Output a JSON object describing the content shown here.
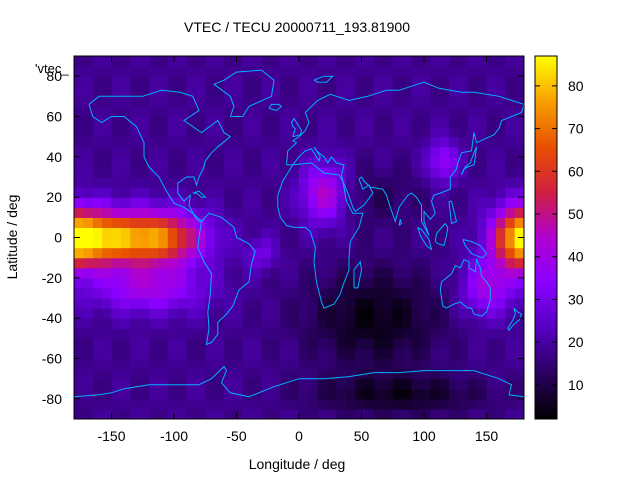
{
  "chart_data": {
    "type": "heatmap",
    "title": "VTEC / TECU 20000711_193.81900",
    "xlabel": "Longitude / deg",
    "ylabel": "Latitude / deg",
    "key_label": "'vtec_",
    "xlim": [
      -180,
      180
    ],
    "ylim": [
      -90,
      90
    ],
    "x_ticks": [
      "-150",
      "-100",
      "-50",
      "0",
      "50",
      "100",
      "150"
    ],
    "x_tick_values": [
      -150,
      -100,
      -50,
      0,
      50,
      100,
      150
    ],
    "y_ticks": [
      "80",
      "60",
      "40",
      "20",
      "0",
      "-20",
      "-40",
      "-60",
      "-80"
    ],
    "y_tick_values": [
      80,
      60,
      40,
      20,
      0,
      -20,
      -40,
      -60,
      -80
    ],
    "colorbar": {
      "range": [
        2,
        87
      ],
      "ticks": [
        "80",
        "70",
        "60",
        "50",
        "40",
        "30",
        "20",
        "10"
      ],
      "tick_values": [
        80,
        70,
        60,
        50,
        40,
        30,
        20,
        10
      ],
      "colormap": [
        "#000000",
        "#2a0060",
        "#5500c0",
        "#8a00ff",
        "#b000d0",
        "#d02040",
        "#e85000",
        "#f8a000",
        "#ffff00"
      ]
    },
    "grid": false,
    "coastline_color": "#00b0ff",
    "grid_step_deg": [
      7.5,
      5
    ],
    "enhancements": [
      {
        "lon": -115,
        "lat": 0,
        "amp": 56,
        "sx": 38,
        "sy": 13
      },
      {
        "lon": -160,
        "lat": 0,
        "amp": 44,
        "sx": 28,
        "sy": 13
      },
      {
        "lon": -120,
        "lat": -25,
        "amp": 22,
        "sx": 45,
        "sy": 12
      },
      {
        "lon": 175,
        "lat": 0,
        "amp": 48,
        "sx": 22,
        "sy": 16
      },
      {
        "lon": 150,
        "lat": -25,
        "amp": 22,
        "sx": 20,
        "sy": 14
      },
      {
        "lon": 20,
        "lat": 22,
        "amp": 28,
        "sx": 18,
        "sy": 15
      },
      {
        "lon": 115,
        "lat": 38,
        "amp": 20,
        "sx": 12,
        "sy": 10
      },
      {
        "lon": -30,
        "lat": -8,
        "amp": 12,
        "sx": 12,
        "sy": 8
      },
      {
        "lon": 60,
        "lat": -40,
        "amp": -14,
        "sx": 55,
        "sy": 25
      },
      {
        "lon": 80,
        "lat": -78,
        "amp": -12,
        "sx": 70,
        "sy": 10
      },
      {
        "lon": 60,
        "lat": 20,
        "amp": -6,
        "sx": 40,
        "sy": 15
      }
    ],
    "base_level": 18
  }
}
